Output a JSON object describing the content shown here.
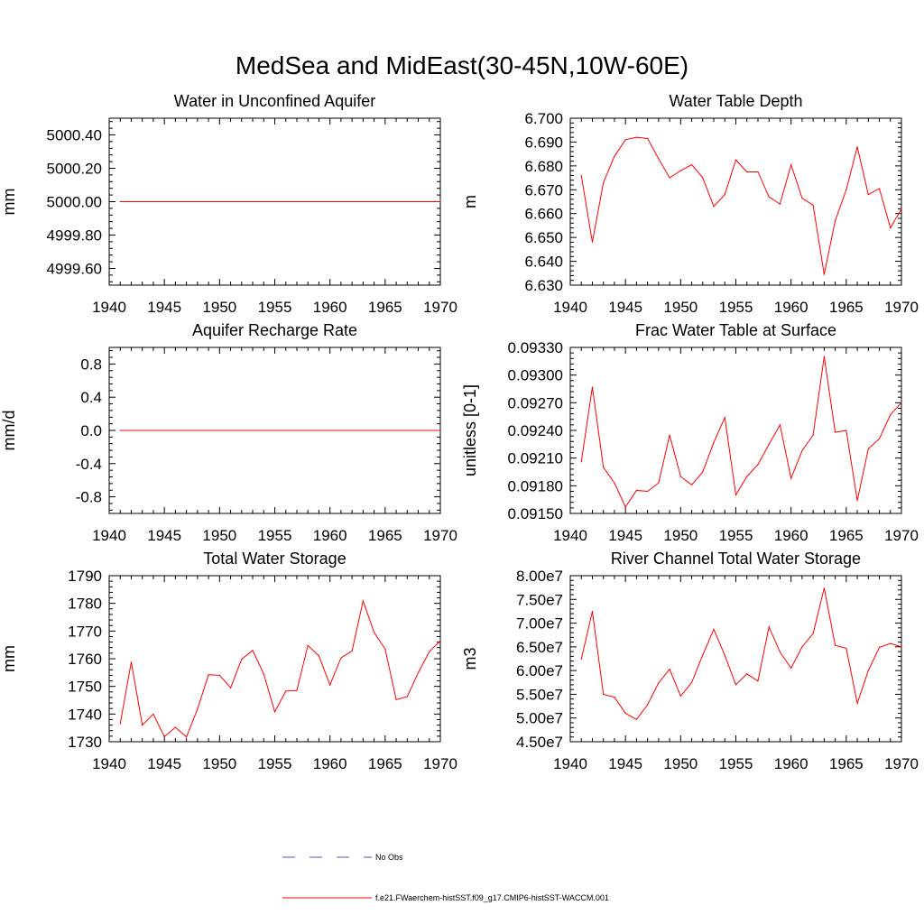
{
  "title": "MedSea and MidEast(30-45N,10W-60E)",
  "colors": {
    "model": "#ff0000",
    "obs": "#4a5aa8",
    "axis": "#000000"
  },
  "legend": {
    "obs_label": "No Obs",
    "model_label": "f.e21.FWaerchem-histSST.f09_g17.CMIP6-histSST-WACCM.001"
  },
  "chart_data": [
    {
      "type": "line",
      "title": "Water in Unconfined Aquifer",
      "ylabel": "mm",
      "xlim": [
        1940,
        1970
      ],
      "ylim": [
        4999.5,
        5000.5
      ],
      "xticks": [
        "1940",
        "1945",
        "1950",
        "1955",
        "1960",
        "1965",
        "1970"
      ],
      "yticks": [
        {
          "v": 4999.6,
          "label": "4999.60"
        },
        {
          "v": 4999.8,
          "label": "4999.80"
        },
        {
          "v": 5000.0,
          "label": "5000.00"
        },
        {
          "v": 5000.2,
          "label": "5000.20"
        },
        {
          "v": 5000.4,
          "label": "5000.40"
        }
      ],
      "x": [
        1941,
        1970
      ],
      "y": [
        5000.0,
        5000.0
      ]
    },
    {
      "type": "line",
      "title": "Water Table Depth",
      "ylabel": "m",
      "xlim": [
        1940,
        1970
      ],
      "ylim": [
        6.63,
        6.7
      ],
      "xticks": [
        "1940",
        "1945",
        "1950",
        "1955",
        "1960",
        "1965",
        "1970"
      ],
      "yticks": [
        {
          "v": 6.63,
          "label": "6.630"
        },
        {
          "v": 6.64,
          "label": "6.640"
        },
        {
          "v": 6.65,
          "label": "6.650"
        },
        {
          "v": 6.66,
          "label": "6.660"
        },
        {
          "v": 6.67,
          "label": "6.670"
        },
        {
          "v": 6.68,
          "label": "6.680"
        },
        {
          "v": 6.69,
          "label": "6.690"
        },
        {
          "v": 6.7,
          "label": "6.700"
        }
      ],
      "x": [
        1941,
        1942,
        1943,
        1944,
        1945,
        1946,
        1947,
        1948,
        1949,
        1950,
        1951,
        1952,
        1953,
        1954,
        1955,
        1956,
        1957,
        1958,
        1959,
        1960,
        1961,
        1962,
        1963,
        1964,
        1965,
        1966,
        1967,
        1968,
        1969,
        1970
      ],
      "y": [
        6.676,
        6.648,
        6.673,
        6.684,
        6.691,
        6.692,
        6.6915,
        6.683,
        6.675,
        6.678,
        6.6805,
        6.675,
        6.663,
        6.668,
        6.6825,
        6.6775,
        6.6775,
        6.667,
        6.664,
        6.6805,
        6.6665,
        6.6635,
        6.6345,
        6.657,
        6.67,
        6.688,
        6.668,
        6.6705,
        6.654,
        6.662
      ]
    },
    {
      "type": "line",
      "title": "Aquifer Recharge Rate",
      "ylabel": "mm/d",
      "xlim": [
        1940,
        1970
      ],
      "ylim": [
        -1.0,
        1.0
      ],
      "xticks": [
        "1940",
        "1945",
        "1950",
        "1955",
        "1960",
        "1965",
        "1970"
      ],
      "yticks": [
        {
          "v": -0.8,
          "label": "-0.8"
        },
        {
          "v": -0.4,
          "label": "-0.4"
        },
        {
          "v": 0.0,
          "label": "0.0"
        },
        {
          "v": 0.4,
          "label": "0.4"
        },
        {
          "v": 0.8,
          "label": "0.8"
        }
      ],
      "x": [
        1941,
        1970
      ],
      "y": [
        0.0,
        0.0
      ]
    },
    {
      "type": "line",
      "title": "Frac Water Table at Surface",
      "ylabel": "unitless [0-1]",
      "xlim": [
        1940,
        1970
      ],
      "ylim": [
        0.0915,
        0.0933
      ],
      "xticks": [
        "1940",
        "1945",
        "1950",
        "1955",
        "1960",
        "1965",
        "1970"
      ],
      "yticks": [
        {
          "v": 0.0915,
          "label": "0.09150"
        },
        {
          "v": 0.0918,
          "label": "0.09180"
        },
        {
          "v": 0.0921,
          "label": "0.09210"
        },
        {
          "v": 0.0924,
          "label": "0.09240"
        },
        {
          "v": 0.0927,
          "label": "0.09270"
        },
        {
          "v": 0.093,
          "label": "0.09300"
        },
        {
          "v": 0.0933,
          "label": "0.09330"
        }
      ],
      "x": [
        1941,
        1942,
        1943,
        1944,
        1945,
        1946,
        1947,
        1948,
        1949,
        1950,
        1951,
        1952,
        1953,
        1954,
        1955,
        1956,
        1957,
        1958,
        1959,
        1960,
        1961,
        1962,
        1963,
        1964,
        1965,
        1966,
        1967,
        1968,
        1969,
        1970
      ],
      "y": [
        0.09206,
        0.09287,
        0.092,
        0.09183,
        0.09157,
        0.09175,
        0.09174,
        0.09183,
        0.09235,
        0.0919,
        0.09181,
        0.09195,
        0.09227,
        0.09254,
        0.0917,
        0.0919,
        0.09203,
        0.09225,
        0.09246,
        0.09188,
        0.09218,
        0.09235,
        0.0932,
        0.09238,
        0.0924,
        0.09164,
        0.0922,
        0.09231,
        0.09257,
        0.0927
      ]
    },
    {
      "type": "line",
      "title": "Total Water Storage",
      "ylabel": "mm",
      "xlim": [
        1940,
        1970
      ],
      "ylim": [
        1730,
        1790
      ],
      "xticks": [
        "1940",
        "1945",
        "1950",
        "1955",
        "1960",
        "1965",
        "1970"
      ],
      "yticks": [
        {
          "v": 1730,
          "label": "1730"
        },
        {
          "v": 1740,
          "label": "1740"
        },
        {
          "v": 1750,
          "label": "1750"
        },
        {
          "v": 1760,
          "label": "1760"
        },
        {
          "v": 1770,
          "label": "1770"
        },
        {
          "v": 1780,
          "label": "1780"
        },
        {
          "v": 1790,
          "label": "1790"
        }
      ],
      "x": [
        1941,
        1942,
        1943,
        1944,
        1945,
        1946,
        1947,
        1948,
        1949,
        1950,
        1951,
        1952,
        1953,
        1954,
        1955,
        1956,
        1957,
        1958,
        1959,
        1960,
        1961,
        1962,
        1963,
        1964,
        1965,
        1966,
        1967,
        1968,
        1969,
        1970
      ],
      "y": [
        1736.5,
        1758.8,
        1736.0,
        1740.0,
        1731.8,
        1735.2,
        1731.7,
        1741.8,
        1754.2,
        1754.0,
        1749.5,
        1759.8,
        1763.0,
        1754.5,
        1740.8,
        1748.3,
        1748.5,
        1764.8,
        1761.0,
        1750.5,
        1760.3,
        1762.8,
        1780.9,
        1769.5,
        1763.5,
        1745.2,
        1746.3,
        1755.0,
        1762.5,
        1766.5
      ]
    },
    {
      "type": "line",
      "title": "River Channel Total Water Storage",
      "ylabel": "m3",
      "xlim": [
        1940,
        1970
      ],
      "ylim": [
        45000000,
        80000000
      ],
      "xticks": [
        "1940",
        "1945",
        "1950",
        "1955",
        "1960",
        "1965",
        "1970"
      ],
      "yticks": [
        {
          "v": 45000000,
          "label": "4.50e7"
        },
        {
          "v": 50000000,
          "label": "5.00e7"
        },
        {
          "v": 55000000,
          "label": "5.50e7"
        },
        {
          "v": 60000000,
          "label": "6.00e7"
        },
        {
          "v": 65000000,
          "label": "6.50e7"
        },
        {
          "v": 70000000,
          "label": "7.00e7"
        },
        {
          "v": 75000000,
          "label": "7.50e7"
        },
        {
          "v": 80000000,
          "label": "8.00e7"
        }
      ],
      "x": [
        1941,
        1942,
        1943,
        1944,
        1945,
        1946,
        1947,
        1948,
        1949,
        1950,
        1951,
        1952,
        1953,
        1954,
        1955,
        1956,
        1957,
        1958,
        1959,
        1960,
        1961,
        1962,
        1963,
        1964,
        1965,
        1966,
        1967,
        1968,
        1969,
        1970
      ],
      "y": [
        62400000,
        72500000,
        55000000,
        54400000,
        51000000,
        49700000,
        52800000,
        57400000,
        60300000,
        54600000,
        57500000,
        63300000,
        68700000,
        63200000,
        57000000,
        59300000,
        57800000,
        69200000,
        63900000,
        60500000,
        65000000,
        67800000,
        77400000,
        65300000,
        64700000,
        53100000,
        60000000,
        64900000,
        65700000,
        65000000
      ]
    }
  ]
}
